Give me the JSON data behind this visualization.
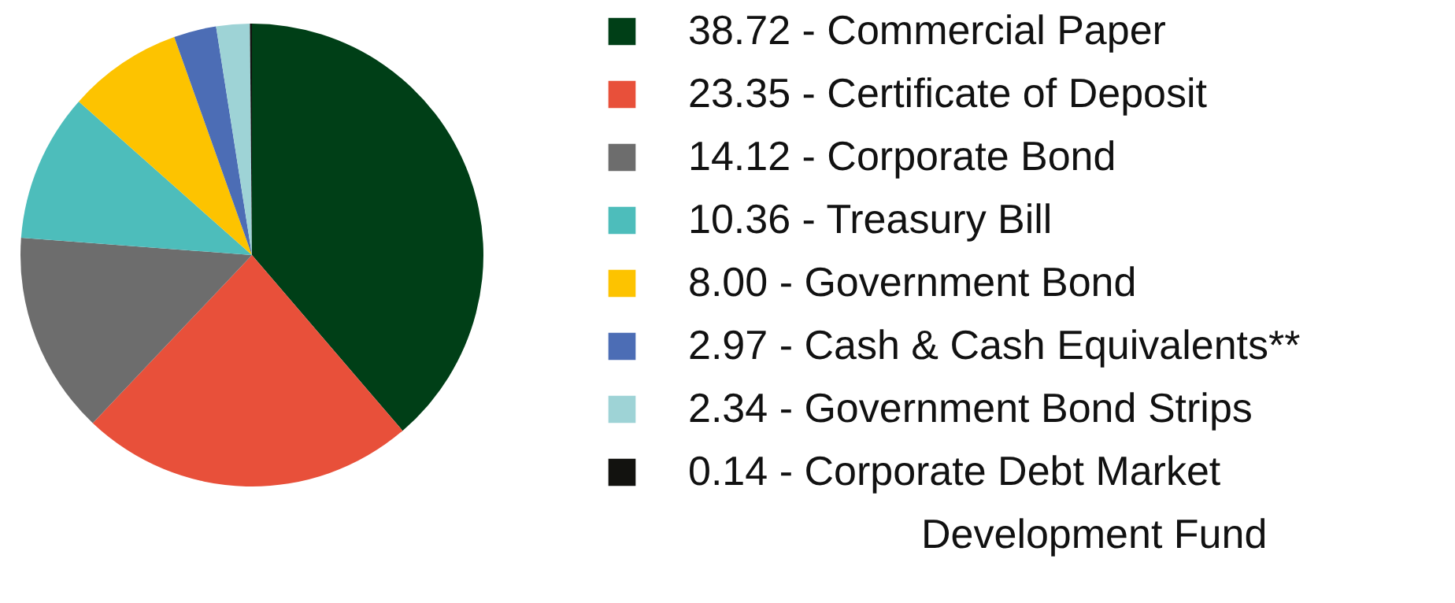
{
  "chart_data": {
    "type": "pie",
    "categories": [
      "Commercial Paper",
      "Certificate of Deposit",
      "Corporate Bond",
      "Treasury Bill",
      "Government Bond",
      "Cash & Cash Equivalents**",
      "Government Bond Strips",
      "Corporate Debt Market Development Fund"
    ],
    "values": [
      38.72,
      23.35,
      14.12,
      10.36,
      8.0,
      2.97,
      2.34,
      0.14
    ],
    "value_labels": [
      "38.72",
      "23.35",
      "14.12",
      "10.36",
      "8.00",
      "2.97",
      "2.34",
      "0.14"
    ],
    "colors": [
      "#003f17",
      "#e8503a",
      "#6d6d6d",
      "#4dbdbb",
      "#fdc300",
      "#4c6db5",
      "#9ed3d6",
      "#12120f"
    ],
    "legend": "right"
  }
}
